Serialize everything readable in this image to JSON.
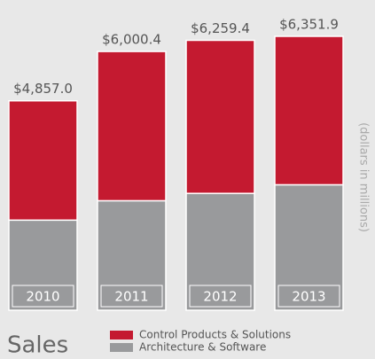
{
  "chart_data": {
    "type": "stacked_bar",
    "title": "Sales",
    "y_label": "(dollars in millions)",
    "categories": [
      "2010",
      "2011",
      "2012",
      "2013"
    ],
    "series": [
      {
        "name": "Architecture & Software",
        "color": "#999a9c",
        "values": [
          2090,
          2540,
          2710,
          2910
        ]
      },
      {
        "name": "Control Products & Solutions",
        "color": "#c41a30",
        "values": [
          2767.0,
          3460.4,
          3549.4,
          3441.9
        ]
      }
    ],
    "totals": [
      4857.0,
      6000.4,
      6259.4,
      6351.9
    ],
    "total_labels": [
      "$4,857.0",
      "$6,000.4",
      "$6,259.4",
      "$6,351.9"
    ],
    "legend": "bottom"
  }
}
